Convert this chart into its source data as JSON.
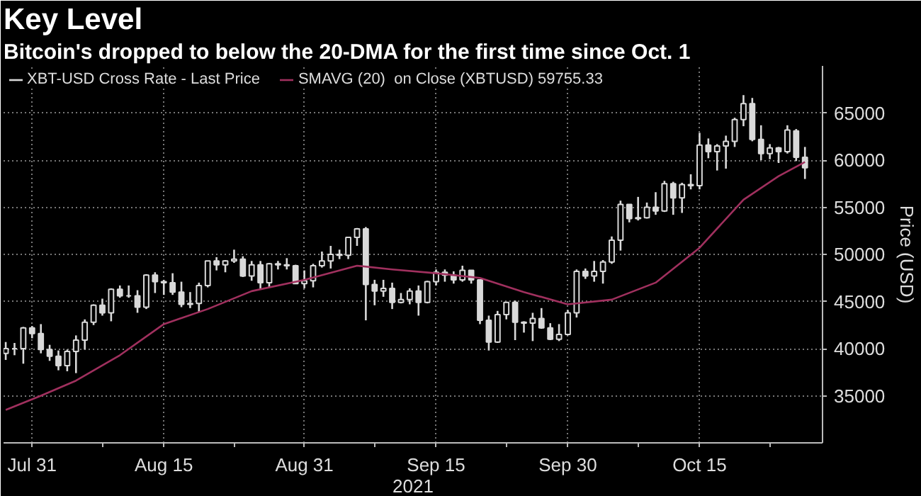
{
  "chart_data": {
    "type": "candlestick",
    "title": "Key Level",
    "subtitle": "Bitcoin's dropped to below the 20-DMA for the first time since Oct. 1",
    "xlabel": "2021",
    "ylabel": "Price (USD)",
    "xlim": [
      "2021-07-27T18:00",
      "2021-10-29"
    ],
    "xticks": [
      {
        "value": "2021-07-31",
        "label": "Jul 31"
      },
      {
        "value": "2021-08-08",
        "label": null
      },
      {
        "value": "2021-08-15",
        "label": "Aug 15"
      },
      {
        "value": "2021-08-23",
        "label": null
      },
      {
        "value": "2021-08-31",
        "label": "Aug 31"
      },
      {
        "value": "2021-09-08",
        "label": null
      },
      {
        "value": "2021-09-15",
        "label": "Sep 15"
      },
      {
        "value": "2021-09-23",
        "label": null
      },
      {
        "value": "2021-09-30",
        "label": "Sep 30"
      },
      {
        "value": "2021-10-08",
        "label": null
      },
      {
        "value": "2021-10-15",
        "label": "Oct 15"
      },
      {
        "value": "2021-10-23",
        "label": null
      }
    ],
    "ylim": [
      30000,
      70000
    ],
    "yticks": [
      35000,
      40000,
      45000,
      50000,
      55000,
      60000,
      65000
    ],
    "grid": true,
    "legend": "top left",
    "series": [
      {
        "name": "XBT-USD Cross Rate - Last Price",
        "color": "#d9d9d9",
        "x": [
          "2021-07-28",
          "2021-07-29",
          "2021-07-30",
          "2021-07-31",
          "2021-08-01",
          "2021-08-02",
          "2021-08-03",
          "2021-08-04",
          "2021-08-05",
          "2021-08-06",
          "2021-08-07",
          "2021-08-08",
          "2021-08-09",
          "2021-08-10",
          "2021-08-11",
          "2021-08-12",
          "2021-08-13",
          "2021-08-14",
          "2021-08-15",
          "2021-08-16",
          "2021-08-17",
          "2021-08-18",
          "2021-08-19",
          "2021-08-20",
          "2021-08-21",
          "2021-08-22",
          "2021-08-23",
          "2021-08-24",
          "2021-08-25",
          "2021-08-26",
          "2021-08-27",
          "2021-08-28",
          "2021-08-29",
          "2021-08-30",
          "2021-08-31",
          "2021-09-01",
          "2021-09-02",
          "2021-09-03",
          "2021-09-04",
          "2021-09-05",
          "2021-09-06",
          "2021-09-07",
          "2021-09-08",
          "2021-09-09",
          "2021-09-10",
          "2021-09-11",
          "2021-09-12",
          "2021-09-13",
          "2021-09-14",
          "2021-09-15",
          "2021-09-16",
          "2021-09-17",
          "2021-09-18",
          "2021-09-19",
          "2021-09-20",
          "2021-09-21",
          "2021-09-22",
          "2021-09-23",
          "2021-09-24",
          "2021-09-25",
          "2021-09-26",
          "2021-09-27",
          "2021-09-28",
          "2021-09-29",
          "2021-09-30",
          "2021-10-01",
          "2021-10-02",
          "2021-10-03",
          "2021-10-04",
          "2021-10-05",
          "2021-10-06",
          "2021-10-07",
          "2021-10-08",
          "2021-10-09",
          "2021-10-10",
          "2021-10-11",
          "2021-10-12",
          "2021-10-13",
          "2021-10-14",
          "2021-10-15",
          "2021-10-16",
          "2021-10-17",
          "2021-10-18",
          "2021-10-19",
          "2021-10-20",
          "2021-10-21",
          "2021-10-22",
          "2021-10-23",
          "2021-10-24",
          "2021-10-25",
          "2021-10-26",
          "2021-10-27"
        ],
        "ohlc": [
          [
            39500,
            40700,
            38800,
            40000
          ],
          [
            40000,
            40600,
            39300,
            40000
          ],
          [
            40000,
            42300,
            38400,
            42200
          ],
          [
            42200,
            42400,
            41100,
            41600
          ],
          [
            41600,
            42600,
            39500,
            39900
          ],
          [
            39900,
            40400,
            38700,
            39200
          ],
          [
            39200,
            39800,
            37700,
            38200
          ],
          [
            38200,
            39900,
            37600,
            39700
          ],
          [
            39700,
            41400,
            37400,
            40900
          ],
          [
            40900,
            43100,
            39900,
            42800
          ],
          [
            42800,
            44700,
            42500,
            44600
          ],
          [
            44600,
            45300,
            43500,
            43800
          ],
          [
            43800,
            46400,
            42900,
            46300
          ],
          [
            46300,
            46700,
            45400,
            45600
          ],
          [
            45600,
            46700,
            45400,
            45600
          ],
          [
            45600,
            46200,
            43800,
            44400
          ],
          [
            44400,
            47900,
            44200,
            47800
          ],
          [
            47800,
            48100,
            45900,
            47100
          ],
          [
            47100,
            47300,
            45700,
            47000
          ],
          [
            47000,
            48000,
            45700,
            46000
          ],
          [
            46000,
            47100,
            44400,
            44700
          ],
          [
            44700,
            46000,
            44300,
            44800
          ],
          [
            44800,
            47000,
            43900,
            46700
          ],
          [
            46700,
            49300,
            46500,
            49300
          ],
          [
            49300,
            49700,
            48300,
            48900
          ],
          [
            48900,
            49400,
            48100,
            49300
          ],
          [
            49300,
            50500,
            49100,
            49500
          ],
          [
            49500,
            49800,
            47600,
            47700
          ],
          [
            47700,
            49300,
            47200,
            48900
          ],
          [
            48900,
            49300,
            46300,
            47000
          ],
          [
            47000,
            49100,
            46500,
            49000
          ],
          [
            49000,
            49300,
            48400,
            48900
          ],
          [
            48900,
            49600,
            48400,
            48800
          ],
          [
            48800,
            48900,
            46900,
            46900
          ],
          [
            46900,
            48300,
            46400,
            47200
          ],
          [
            47200,
            49000,
            46500,
            48800
          ],
          [
            48800,
            50300,
            48600,
            49300
          ],
          [
            49300,
            50900,
            48500,
            50000
          ],
          [
            50000,
            50500,
            49500,
            49900
          ],
          [
            49900,
            51800,
            49500,
            51800
          ],
          [
            51800,
            52800,
            50900,
            52700
          ],
          [
            52700,
            52900,
            43000,
            46800
          ],
          [
            46800,
            47300,
            44600,
            46100
          ],
          [
            46100,
            47300,
            45500,
            46400
          ],
          [
            46400,
            47000,
            44200,
            44900
          ],
          [
            44900,
            45900,
            44800,
            45200
          ],
          [
            45200,
            46400,
            44700,
            46100
          ],
          [
            46100,
            46700,
            43500,
            44900
          ],
          [
            44900,
            47200,
            44800,
            47100
          ],
          [
            47100,
            48400,
            46700,
            48100
          ],
          [
            48100,
            48400,
            47100,
            47800
          ],
          [
            47800,
            48200,
            46900,
            47300
          ],
          [
            47300,
            48800,
            47100,
            48300
          ],
          [
            48300,
            48300,
            46900,
            47300
          ],
          [
            47300,
            47300,
            42600,
            43000
          ],
          [
            43000,
            43500,
            39800,
            40700
          ],
          [
            40700,
            44000,
            40600,
            43600
          ],
          [
            43600,
            44900,
            43100,
            44900
          ],
          [
            44900,
            45100,
            40900,
            42800
          ],
          [
            42800,
            42900,
            41700,
            42700
          ],
          [
            42700,
            43800,
            40800,
            43200
          ],
          [
            43200,
            44300,
            42100,
            42200
          ],
          [
            42200,
            42700,
            40900,
            41000
          ],
          [
            41000,
            42600,
            40800,
            41500
          ],
          [
            41500,
            44100,
            41400,
            43800
          ],
          [
            43800,
            48400,
            43300,
            48200
          ],
          [
            48200,
            48500,
            47400,
            47700
          ],
          [
            47700,
            49300,
            47100,
            48200
          ],
          [
            48200,
            49400,
            46900,
            49200
          ],
          [
            49200,
            51900,
            49000,
            51500
          ],
          [
            51500,
            55700,
            50400,
            55300
          ],
          [
            55300,
            55300,
            53400,
            53800
          ],
          [
            53800,
            56100,
            53600,
            53900
          ],
          [
            53900,
            55500,
            53800,
            55000
          ],
          [
            55000,
            56600,
            54200,
            54600
          ],
          [
            54600,
            57800,
            54500,
            57500
          ],
          [
            57500,
            57700,
            54200,
            56000
          ],
          [
            56000,
            57600,
            54400,
            57400
          ],
          [
            57400,
            58500,
            56900,
            57300
          ],
          [
            57300,
            62900,
            56900,
            61600
          ],
          [
            61600,
            62300,
            60200,
            60900
          ],
          [
            60900,
            61700,
            58900,
            61500
          ],
          [
            61500,
            62600,
            59100,
            62000
          ],
          [
            62000,
            64500,
            61400,
            64300
          ],
          [
            64300,
            66900,
            63600,
            66000
          ],
          [
            66000,
            66600,
            62000,
            62200
          ],
          [
            62200,
            63700,
            60000,
            60700
          ],
          [
            60700,
            61700,
            60100,
            61300
          ],
          [
            61300,
            61400,
            59700,
            60900
          ],
          [
            60900,
            63700,
            60700,
            63200
          ],
          [
            63100,
            63300,
            59900,
            60300
          ],
          [
            60300,
            61400,
            58000,
            59200
          ]
        ]
      },
      {
        "name": "SMAVG (20)  on Close (XBTUSD) 59755.33",
        "type": "line",
        "color": "#a0305e",
        "x": [
          "2021-07-28",
          "2021-08-01",
          "2021-08-05",
          "2021-08-10",
          "2021-08-15",
          "2021-08-20",
          "2021-08-25",
          "2021-08-31",
          "2021-09-06",
          "2021-09-10",
          "2021-09-15",
          "2021-09-20",
          "2021-09-25",
          "2021-09-30",
          "2021-10-05",
          "2021-10-10",
          "2021-10-15",
          "2021-10-20",
          "2021-10-24",
          "2021-10-27"
        ],
        "values": [
          33500,
          35000,
          36600,
          39300,
          42600,
          44200,
          46100,
          47300,
          48800,
          48400,
          48000,
          47500,
          46000,
          44700,
          45200,
          47000,
          50700,
          55800,
          58300,
          59800
        ]
      }
    ]
  }
}
